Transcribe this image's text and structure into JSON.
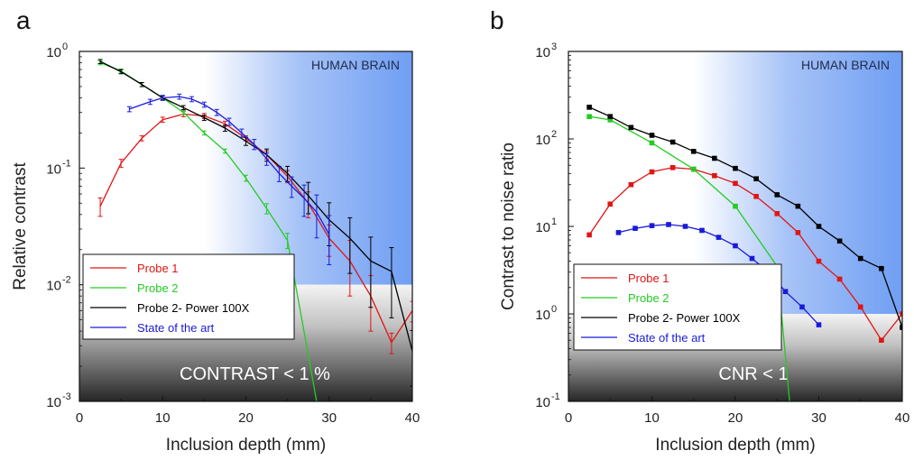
{
  "chart_data": [
    {
      "type": "line",
      "panel_label": "a",
      "xlabel": "Inclusion depth (mm)",
      "ylabel": "Relative contrast",
      "yscale": "log",
      "xlim": [
        0,
        40
      ],
      "ylim": [
        0.001,
        1
      ],
      "x_ticks": [
        "0",
        "10",
        "20",
        "30",
        "40"
      ],
      "y_ticks": [
        {
          "base": "10",
          "exp": "0"
        },
        {
          "base": "10",
          "exp": "-1"
        },
        {
          "base": "10",
          "exp": "-2"
        },
        {
          "base": "10",
          "exp": "-3"
        }
      ],
      "region_label": "HUMAN BRAIN",
      "region_x_start": 15,
      "threshold_label": "CONTRAST < 1 %",
      "threshold_value": 0.01,
      "legend_position": "bottom-left",
      "series": [
        {
          "name": "Probe 1",
          "color": "#e01515",
          "x": [
            2.5,
            5,
            7.5,
            10,
            12.5,
            15,
            17.5,
            20,
            22.5,
            25,
            27.5,
            30,
            32.5,
            35,
            37.5,
            40
          ],
          "y": [
            0.047,
            0.11,
            0.18,
            0.26,
            0.29,
            0.28,
            0.24,
            0.18,
            0.13,
            0.085,
            0.05,
            0.025,
            0.016,
            0.008,
            0.0032,
            0.006
          ],
          "yerr_frac": [
            0.18,
            0.08,
            0.05,
            0.05,
            0.05,
            0.05,
            0.05,
            0.05,
            0.08,
            0.12,
            0.25,
            0.3,
            0.5,
            0.5,
            0.2,
            0.2
          ]
        },
        {
          "name": "Probe 2",
          "color": "#22cc22",
          "x": [
            2.5,
            5,
            7.5,
            10,
            12.5,
            15,
            17.5,
            20,
            22.5,
            25,
            27.5,
            28.5
          ],
          "y": [
            0.8,
            0.68,
            0.52,
            0.4,
            0.3,
            0.2,
            0.14,
            0.082,
            0.045,
            0.024,
            0.0025,
            0.001
          ],
          "yerr_frac": [
            0.04,
            0.04,
            0.04,
            0.04,
            0.04,
            0.04,
            0.04,
            0.06,
            0.1,
            0.15,
            0,
            0
          ]
        },
        {
          "name": "Probe 2- Power 100X",
          "color": "#000000",
          "x": [
            2.5,
            5,
            7.5,
            10,
            12.5,
            15,
            17.5,
            20,
            22.5,
            25,
            27.5,
            30,
            32.5,
            35,
            37.5,
            40
          ],
          "y": [
            0.82,
            0.67,
            0.52,
            0.4,
            0.33,
            0.27,
            0.22,
            0.17,
            0.13,
            0.09,
            0.058,
            0.036,
            0.025,
            0.016,
            0.013,
            0.0027
          ],
          "yerr_frac": [
            0.04,
            0.04,
            0.04,
            0.04,
            0.04,
            0.05,
            0.06,
            0.08,
            0.12,
            0.15,
            0.3,
            0.4,
            0.5,
            0.6,
            0.6,
            0.5
          ]
        },
        {
          "name": "State of the art",
          "color": "#1a1adc",
          "x": [
            6,
            8.5,
            10,
            12,
            13.5,
            15,
            16.5,
            18,
            19.5,
            21,
            22.5,
            24,
            25.5,
            27,
            28.5,
            30
          ],
          "y": [
            0.32,
            0.37,
            0.4,
            0.41,
            0.39,
            0.35,
            0.3,
            0.25,
            0.2,
            0.16,
            0.12,
            0.09,
            0.07,
            0.055,
            0.042,
            0.027
          ],
          "yerr_frac": [
            0.05,
            0.05,
            0.05,
            0.05,
            0.05,
            0.05,
            0.06,
            0.07,
            0.08,
            0.1,
            0.12,
            0.15,
            0.2,
            0.3,
            0.4,
            0.45
          ]
        }
      ]
    },
    {
      "type": "line",
      "panel_label": "b",
      "xlabel": "Inclusion depth (mm)",
      "ylabel": "Contrast to noise ratio",
      "yscale": "log",
      "xlim": [
        0,
        40
      ],
      "ylim": [
        0.1,
        1000
      ],
      "x_ticks": [
        "0",
        "10",
        "20",
        "30",
        "40"
      ],
      "y_ticks": [
        {
          "base": "10",
          "exp": "3"
        },
        {
          "base": "10",
          "exp": "2"
        },
        {
          "base": "10",
          "exp": "1"
        },
        {
          "base": "10",
          "exp": "0"
        },
        {
          "base": "10",
          "exp": "-1"
        }
      ],
      "region_label": "HUMAN BRAIN",
      "region_x_start": 15,
      "threshold_label": "CNR < 1",
      "threshold_value": 1,
      "legend_position": "bottom-left",
      "series": [
        {
          "name": "Probe 1",
          "color": "#e01515",
          "x": [
            2.5,
            5,
            7.5,
            10,
            12.5,
            15,
            17.5,
            20,
            22.5,
            25,
            27.5,
            30,
            32.5,
            35,
            37.5,
            40
          ],
          "y": [
            8,
            18,
            30,
            42,
            47,
            45,
            38,
            31,
            22,
            14,
            8.5,
            4,
            2.5,
            1.2,
            0.5,
            1.0
          ]
        },
        {
          "name": "Probe 2",
          "color": "#22cc22",
          "x": [
            2.5,
            5,
            10,
            15,
            20,
            25,
            26.5
          ],
          "y": [
            180,
            165,
            90,
            45,
            17,
            3.5,
            0.1
          ]
        },
        {
          "name": "Probe 2- Power 100X",
          "color": "#000000",
          "x": [
            2.5,
            5,
            7.5,
            10,
            12.5,
            15,
            17.5,
            20,
            22.5,
            25,
            27.5,
            30,
            32.5,
            35,
            37.5,
            40
          ],
          "y": [
            230,
            180,
            135,
            110,
            92,
            72,
            60,
            46,
            35,
            23,
            17,
            10,
            6.8,
            4.3,
            3.3,
            0.7
          ]
        },
        {
          "name": "State of the art",
          "color": "#1a1adc",
          "x": [
            2.5,
            6,
            8,
            10,
            12,
            14,
            16,
            18,
            20,
            22,
            24,
            26,
            28,
            30
          ],
          "y": [
            null,
            8.5,
            9.5,
            10.2,
            10.5,
            10,
            9,
            7.5,
            6,
            4.3,
            3,
            1.8,
            1.2,
            0.75
          ]
        }
      ]
    }
  ]
}
